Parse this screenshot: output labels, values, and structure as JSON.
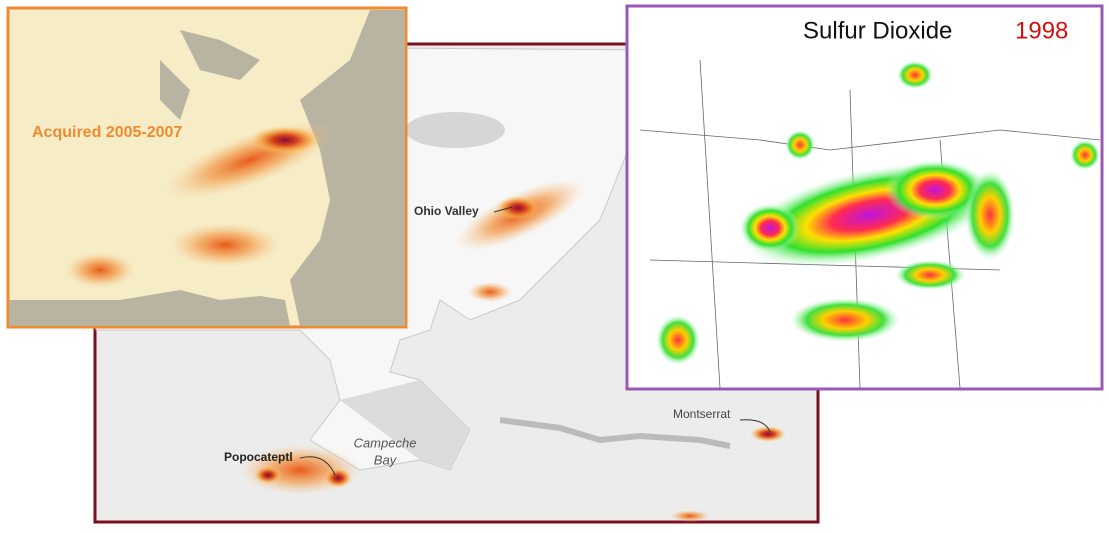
{
  "main_map": {
    "labels": {
      "ohio_valley": "Ohio Valley",
      "popocatepetl": "Popocateptl",
      "campeche": "Campeche",
      "bay": "Bay",
      "montserrat": "Montserrat"
    }
  },
  "inset_left": {
    "label": "Acquired 2005-2007"
  },
  "inset_right": {
    "title": "Sulfur Dioxide",
    "year": "1998"
  }
}
